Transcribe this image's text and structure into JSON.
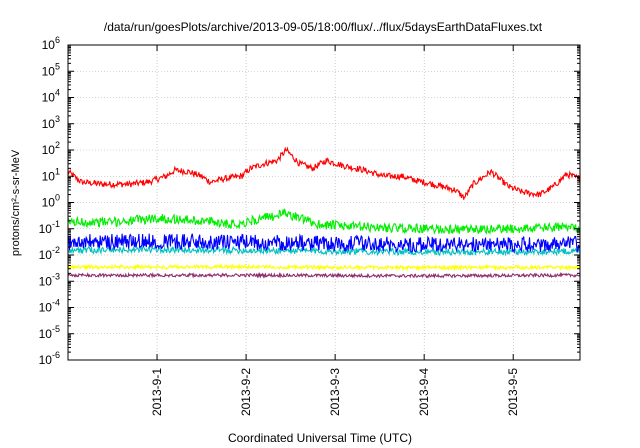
{
  "chart_data": {
    "type": "line",
    "title": "/data/run/goesPlots/archive/2013-09-05/18:00/flux/../flux/5daysEarthDataFluxes.txt",
    "xlabel": "Coordinated Universal Time (UTC)",
    "ylabel": "protons/cm²-s-sr-MeV",
    "yscale": "log",
    "ylim": [
      1e-06,
      1000000.0
    ],
    "xlim_days": [
      0,
      5.75
    ],
    "grid": true,
    "legend": "none",
    "y_ticks": [
      {
        "base": "10",
        "exp": "-6",
        "value": 1e-06
      },
      {
        "base": "10",
        "exp": "-5",
        "value": 1e-05
      },
      {
        "base": "10",
        "exp": "-4",
        "value": 0.0001
      },
      {
        "base": "10",
        "exp": "-3",
        "value": 0.001
      },
      {
        "base": "10",
        "exp": "-2",
        "value": 0.01
      },
      {
        "base": "10",
        "exp": "-1",
        "value": 0.1
      },
      {
        "base": "10",
        "exp": "0",
        "value": 1
      },
      {
        "base": "10",
        "exp": "1",
        "value": 10
      },
      {
        "base": "10",
        "exp": "2",
        "value": 100
      },
      {
        "base": "10",
        "exp": "3",
        "value": 1000
      },
      {
        "base": "10",
        "exp": "4",
        "value": 10000
      },
      {
        "base": "10",
        "exp": "5",
        "value": 100000
      },
      {
        "base": "10",
        "exp": "6",
        "value": 1000000
      }
    ],
    "x_ticks": [
      {
        "label": "2013-9-1",
        "day": 1
      },
      {
        "label": "2013-9-2",
        "day": 2
      },
      {
        "label": "2013-9-3",
        "day": 3
      },
      {
        "label": "2013-9-4",
        "day": 4
      },
      {
        "label": "2013-9-5",
        "day": 5
      }
    ],
    "series": [
      {
        "color": "#ff0000",
        "noise": 0.12,
        "points": [
          [
            0,
            15
          ],
          [
            0.15,
            6
          ],
          [
            0.4,
            5
          ],
          [
            0.7,
            5
          ],
          [
            0.9,
            6
          ],
          [
            1.1,
            10
          ],
          [
            1.2,
            17
          ],
          [
            1.35,
            15
          ],
          [
            1.5,
            10
          ],
          [
            1.6,
            6
          ],
          [
            1.75,
            8
          ],
          [
            1.95,
            10
          ],
          [
            2.05,
            20
          ],
          [
            2.2,
            30
          ],
          [
            2.35,
            40
          ],
          [
            2.45,
            100
          ],
          [
            2.6,
            30
          ],
          [
            2.75,
            20
          ],
          [
            2.9,
            40
          ],
          [
            3.1,
            25
          ],
          [
            3.3,
            18
          ],
          [
            3.55,
            10
          ],
          [
            3.75,
            10
          ],
          [
            3.9,
            7
          ],
          [
            4.1,
            5
          ],
          [
            4.35,
            3
          ],
          [
            4.45,
            1.5
          ],
          [
            4.55,
            5
          ],
          [
            4.75,
            15
          ],
          [
            4.95,
            4
          ],
          [
            5.1,
            2.5
          ],
          [
            5.3,
            2
          ],
          [
            5.45,
            4
          ],
          [
            5.6,
            12
          ],
          [
            5.75,
            8
          ]
        ]
      },
      {
        "color": "#00ee00",
        "noise": 0.18,
        "points": [
          [
            0,
            0.18
          ],
          [
            0.5,
            0.18
          ],
          [
            1.0,
            0.25
          ],
          [
            1.5,
            0.2
          ],
          [
            1.9,
            0.15
          ],
          [
            2.3,
            0.3
          ],
          [
            2.45,
            0.4
          ],
          [
            2.6,
            0.25
          ],
          [
            2.8,
            0.15
          ],
          [
            3.2,
            0.12
          ],
          [
            4.0,
            0.1
          ],
          [
            4.5,
            0.09
          ],
          [
            5.0,
            0.1
          ],
          [
            5.75,
            0.12
          ]
        ]
      },
      {
        "color": "#00c0c0",
        "noise": 0.12,
        "points": [
          [
            0,
            0.015
          ],
          [
            1.0,
            0.016
          ],
          [
            2.0,
            0.015
          ],
          [
            3.0,
            0.014
          ],
          [
            4.0,
            0.013
          ],
          [
            5.0,
            0.013
          ],
          [
            5.75,
            0.014
          ]
        ]
      },
      {
        "color": "#0000ff",
        "noise": 0.3,
        "points": [
          [
            0,
            0.03
          ],
          [
            1.0,
            0.035
          ],
          [
            2.0,
            0.03
          ],
          [
            3.0,
            0.028
          ],
          [
            4.0,
            0.025
          ],
          [
            5.0,
            0.025
          ],
          [
            5.75,
            0.027
          ]
        ]
      },
      {
        "color": "#ffff00",
        "noise": 0.07,
        "points": [
          [
            0,
            0.0035
          ],
          [
            2.0,
            0.0035
          ],
          [
            4.0,
            0.0033
          ],
          [
            5.75,
            0.0034
          ]
        ]
      },
      {
        "color": "#8b2c6e",
        "noise": 0.06,
        "points": [
          [
            0,
            0.0017
          ],
          [
            2.0,
            0.0017
          ],
          [
            4.0,
            0.0016
          ],
          [
            5.75,
            0.0017
          ]
        ]
      }
    ]
  }
}
